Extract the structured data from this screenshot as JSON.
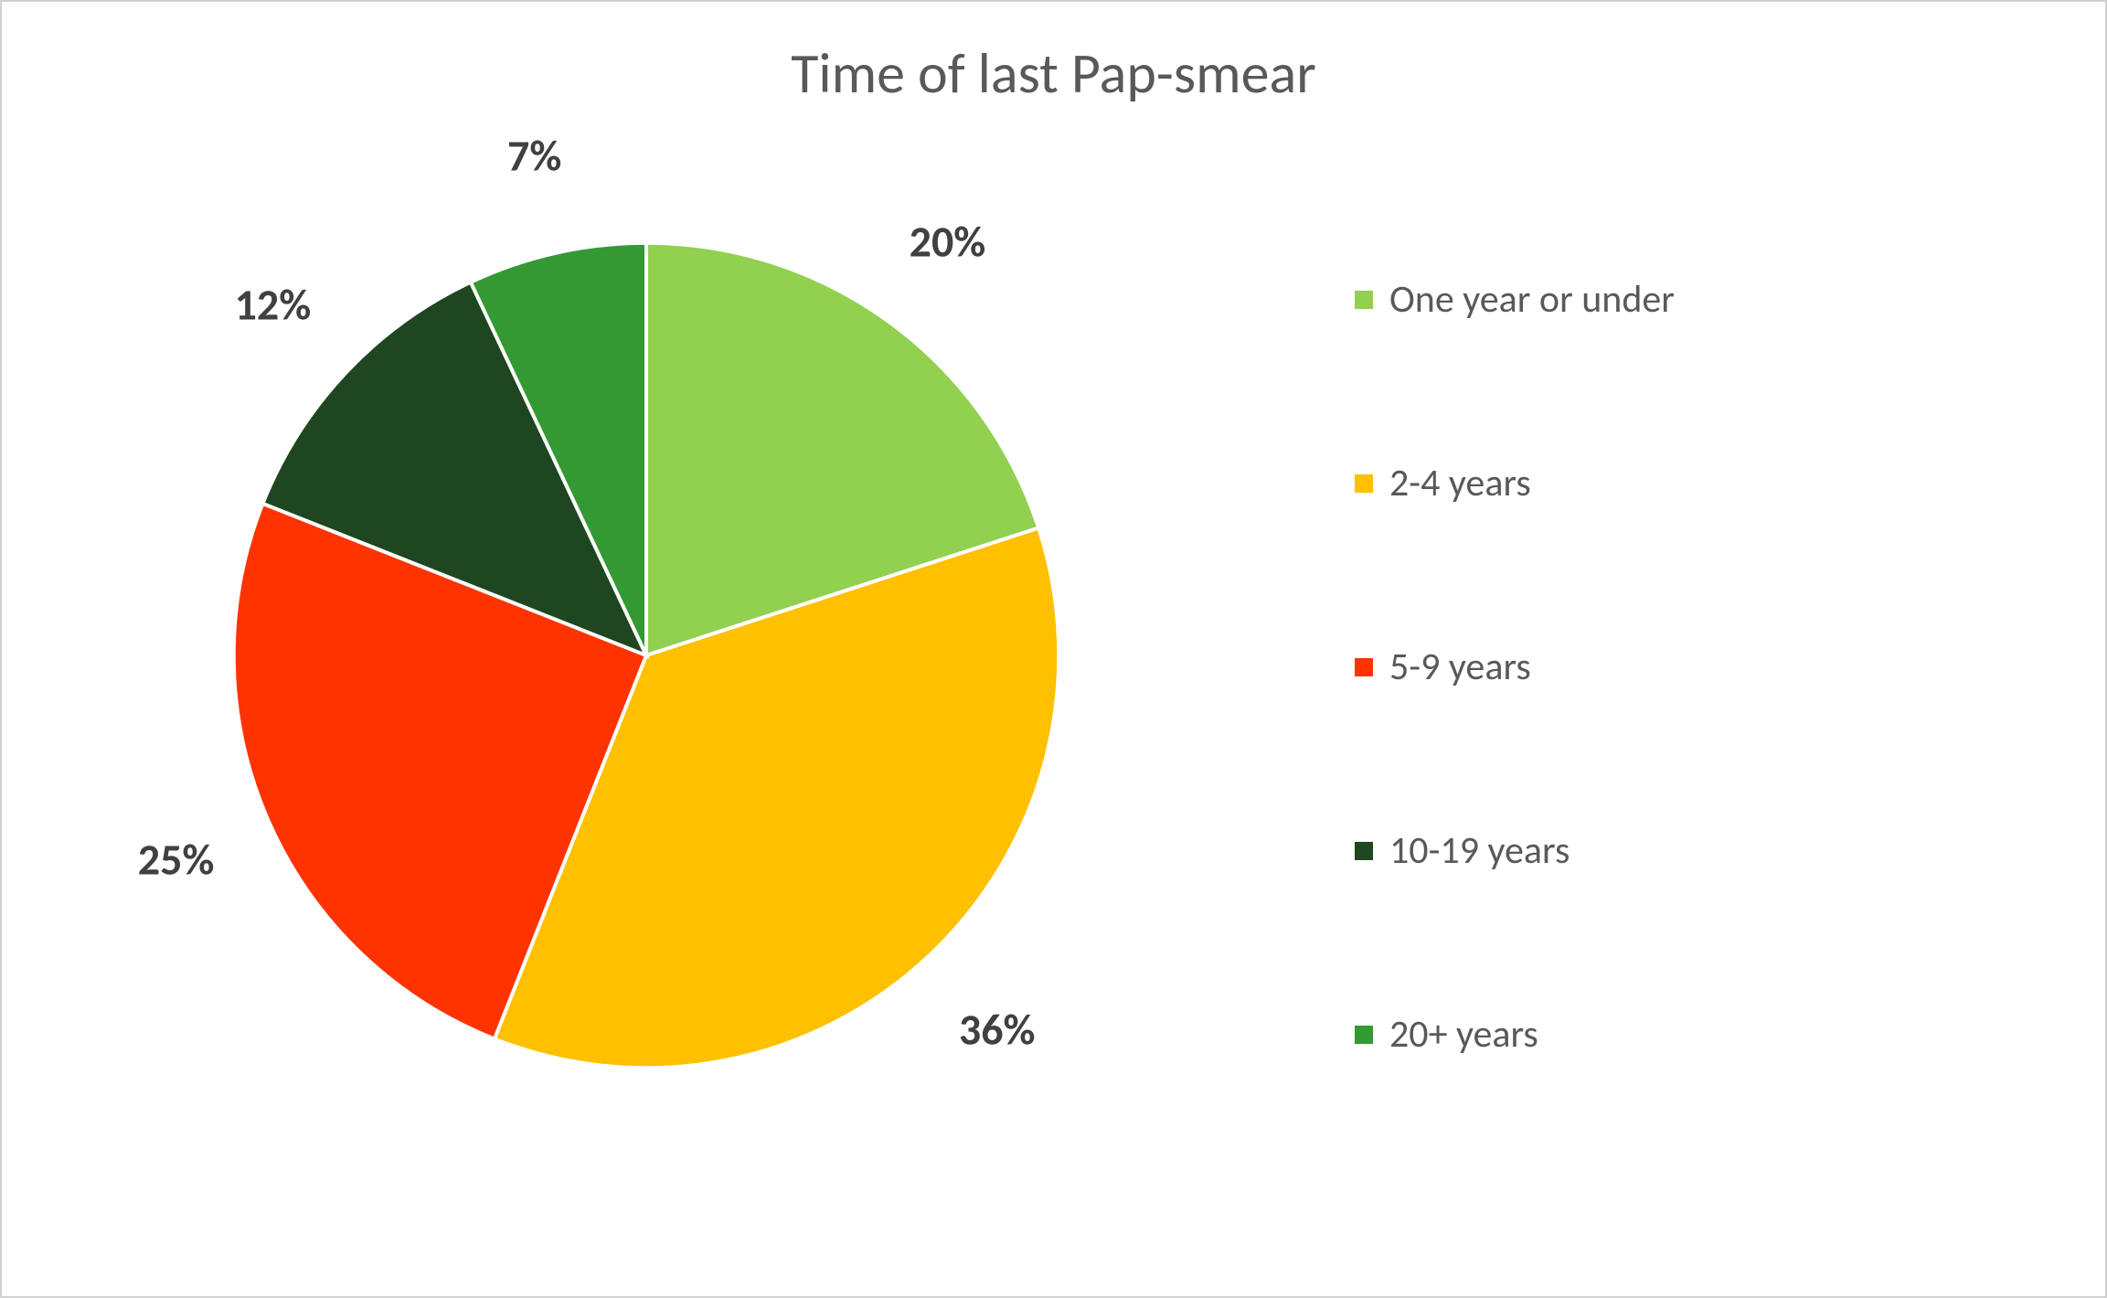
{
  "chart": {
    "type": "pie",
    "title": "Time of last Pap-smear",
    "title_fontsize": 62,
    "title_color": "#595959",
    "background_color": "#ffffff",
    "border_color": "#d0d0d0",
    "slice_border_color": "#ffffff",
    "slice_border_width": 4,
    "data_label_fontsize": 48,
    "data_label_color": "#404040",
    "data_label_fontweight": "bold",
    "legend_fontsize": 42,
    "legend_color": "#595959",
    "legend_marker_size": 20,
    "slices": [
      {
        "label": "One year or under",
        "value": 20,
        "display": "20%",
        "color": "#92d050"
      },
      {
        "label": "2-4 years",
        "value": 36,
        "display": "36%",
        "color": "#ffc000"
      },
      {
        "label": "5-9 years",
        "value": 25,
        "display": "25%",
        "color": "#ff3300"
      },
      {
        "label": "10-19 years",
        "value": 12,
        "display": "12%",
        "color": "#1e4620"
      },
      {
        "label": "20+ years",
        "value": 7,
        "display": "7%",
        "color": "#339933"
      }
    ]
  }
}
